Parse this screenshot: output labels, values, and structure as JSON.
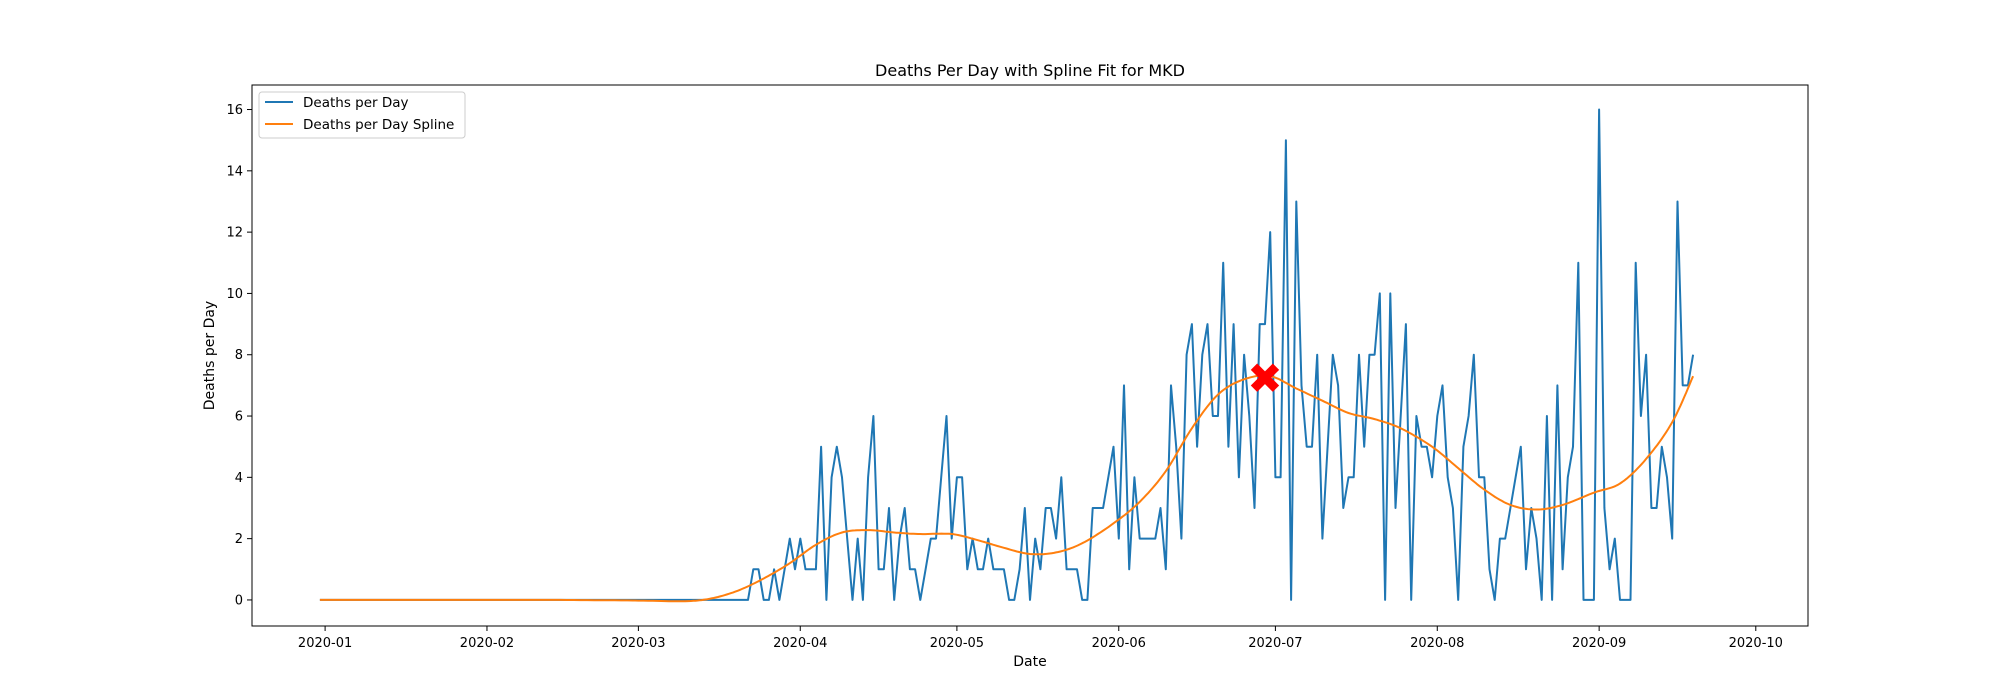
{
  "chart_data": {
    "type": "line",
    "title": "Deaths Per Day with Spline Fit for MKD",
    "xlabel": "Date",
    "ylabel": "Deaths per Day",
    "xlim": [
      "2019-12-18",
      "2020-10-11"
    ],
    "ylim": [
      -0.85,
      16.8
    ],
    "x_ticks": [
      "2020-01",
      "2020-02",
      "2020-03",
      "2020-04",
      "2020-05",
      "2020-06",
      "2020-07",
      "2020-08",
      "2020-09",
      "2020-10"
    ],
    "y_ticks": [
      0,
      2,
      4,
      6,
      8,
      10,
      12,
      14,
      16
    ],
    "grid": false,
    "legend_position": "upper-left",
    "colors": {
      "daily": "#1f77b4",
      "spline": "#ff7f0e",
      "marker": "#ff0000"
    },
    "series": [
      {
        "name": "Deaths per Day",
        "start_date": "2019-12-31",
        "end_date": "2020-09-19",
        "points": [
          [
            "2020-03-22",
            0
          ],
          [
            "2020-03-23",
            1
          ],
          [
            "2020-03-24",
            1
          ],
          [
            "2020-03-25",
            0
          ],
          [
            "2020-03-26",
            0
          ],
          [
            "2020-03-27",
            1
          ],
          [
            "2020-03-28",
            0
          ],
          [
            "2020-03-29",
            1
          ],
          [
            "2020-03-30",
            2
          ],
          [
            "2020-03-31",
            1
          ],
          [
            "2020-04-01",
            2
          ],
          [
            "2020-04-02",
            1
          ],
          [
            "2020-04-03",
            1
          ],
          [
            "2020-04-04",
            1
          ],
          [
            "2020-04-05",
            5
          ],
          [
            "2020-04-06",
            0
          ],
          [
            "2020-04-07",
            4
          ],
          [
            "2020-04-08",
            5
          ],
          [
            "2020-04-09",
            4
          ],
          [
            "2020-04-10",
            2
          ],
          [
            "2020-04-11",
            0
          ],
          [
            "2020-04-12",
            2
          ],
          [
            "2020-04-13",
            0
          ],
          [
            "2020-04-14",
            4
          ],
          [
            "2020-04-15",
            6
          ],
          [
            "2020-04-16",
            1
          ],
          [
            "2020-04-17",
            1
          ],
          [
            "2020-04-18",
            3
          ],
          [
            "2020-04-19",
            0
          ],
          [
            "2020-04-20",
            2
          ],
          [
            "2020-04-21",
            3
          ],
          [
            "2020-04-22",
            1
          ],
          [
            "2020-04-23",
            1
          ],
          [
            "2020-04-24",
            0
          ],
          [
            "2020-04-25",
            1
          ],
          [
            "2020-04-26",
            2
          ],
          [
            "2020-04-27",
            2
          ],
          [
            "2020-04-28",
            4
          ],
          [
            "2020-04-29",
            6
          ],
          [
            "2020-04-30",
            2
          ],
          [
            "2020-05-01",
            4
          ],
          [
            "2020-05-02",
            4
          ],
          [
            "2020-05-03",
            1
          ],
          [
            "2020-05-04",
            2
          ],
          [
            "2020-05-05",
            1
          ],
          [
            "2020-05-06",
            1
          ],
          [
            "2020-05-07",
            2
          ],
          [
            "2020-05-08",
            1
          ],
          [
            "2020-05-09",
            1
          ],
          [
            "2020-05-10",
            1
          ],
          [
            "2020-05-11",
            0
          ],
          [
            "2020-05-12",
            0
          ],
          [
            "2020-05-13",
            1
          ],
          [
            "2020-05-14",
            3
          ],
          [
            "2020-05-15",
            0
          ],
          [
            "2020-05-16",
            2
          ],
          [
            "2020-05-17",
            1
          ],
          [
            "2020-05-18",
            3
          ],
          [
            "2020-05-19",
            3
          ],
          [
            "2020-05-20",
            2
          ],
          [
            "2020-05-21",
            4
          ],
          [
            "2020-05-22",
            1
          ],
          [
            "2020-05-23",
            1
          ],
          [
            "2020-05-24",
            1
          ],
          [
            "2020-05-25",
            0
          ],
          [
            "2020-05-26",
            0
          ],
          [
            "2020-05-27",
            3
          ],
          [
            "2020-05-28",
            3
          ],
          [
            "2020-05-29",
            3
          ],
          [
            "2020-05-30",
            4
          ],
          [
            "2020-05-31",
            5
          ],
          [
            "2020-06-01",
            2
          ],
          [
            "2020-06-02",
            7
          ],
          [
            "2020-06-03",
            1
          ],
          [
            "2020-06-04",
            4
          ],
          [
            "2020-06-05",
            2
          ],
          [
            "2020-06-06",
            2
          ],
          [
            "2020-06-07",
            2
          ],
          [
            "2020-06-08",
            2
          ],
          [
            "2020-06-09",
            3
          ],
          [
            "2020-06-10",
            1
          ],
          [
            "2020-06-11",
            7
          ],
          [
            "2020-06-12",
            5
          ],
          [
            "2020-06-13",
            2
          ],
          [
            "2020-06-14",
            8
          ],
          [
            "2020-06-15",
            9
          ],
          [
            "2020-06-16",
            5
          ],
          [
            "2020-06-17",
            8
          ],
          [
            "2020-06-18",
            9
          ],
          [
            "2020-06-19",
            6
          ],
          [
            "2020-06-20",
            6
          ],
          [
            "2020-06-21",
            11
          ],
          [
            "2020-06-22",
            5
          ],
          [
            "2020-06-23",
            9
          ],
          [
            "2020-06-24",
            4
          ],
          [
            "2020-06-25",
            8
          ],
          [
            "2020-06-26",
            6
          ],
          [
            "2020-06-27",
            3
          ],
          [
            "2020-06-28",
            9
          ],
          [
            "2020-06-29",
            9
          ],
          [
            "2020-06-30",
            12
          ],
          [
            "2020-07-01",
            4
          ],
          [
            "2020-07-02",
            4
          ],
          [
            "2020-07-03",
            15
          ],
          [
            "2020-07-04",
            0
          ],
          [
            "2020-07-05",
            13
          ],
          [
            "2020-07-06",
            7
          ],
          [
            "2020-07-07",
            5
          ],
          [
            "2020-07-08",
            5
          ],
          [
            "2020-07-09",
            8
          ],
          [
            "2020-07-10",
            2
          ],
          [
            "2020-07-11",
            5
          ],
          [
            "2020-07-12",
            8
          ],
          [
            "2020-07-13",
            7
          ],
          [
            "2020-07-14",
            3
          ],
          [
            "2020-07-15",
            4
          ],
          [
            "2020-07-16",
            4
          ],
          [
            "2020-07-17",
            8
          ],
          [
            "2020-07-18",
            5
          ],
          [
            "2020-07-19",
            8
          ],
          [
            "2020-07-20",
            8
          ],
          [
            "2020-07-21",
            10
          ],
          [
            "2020-07-22",
            0
          ],
          [
            "2020-07-23",
            10
          ],
          [
            "2020-07-24",
            3
          ],
          [
            "2020-07-25",
            6
          ],
          [
            "2020-07-26",
            9
          ],
          [
            "2020-07-27",
            0
          ],
          [
            "2020-07-28",
            6
          ],
          [
            "2020-07-29",
            5
          ],
          [
            "2020-07-30",
            5
          ],
          [
            "2020-07-31",
            4
          ],
          [
            "2020-08-01",
            6
          ],
          [
            "2020-08-02",
            7
          ],
          [
            "2020-08-03",
            4
          ],
          [
            "2020-08-04",
            3
          ],
          [
            "2020-08-05",
            0
          ],
          [
            "2020-08-06",
            5
          ],
          [
            "2020-08-07",
            6
          ],
          [
            "2020-08-08",
            8
          ],
          [
            "2020-08-09",
            4
          ],
          [
            "2020-08-10",
            4
          ],
          [
            "2020-08-11",
            1
          ],
          [
            "2020-08-12",
            0
          ],
          [
            "2020-08-13",
            2
          ],
          [
            "2020-08-14",
            2
          ],
          [
            "2020-08-15",
            3
          ],
          [
            "2020-08-16",
            4
          ],
          [
            "2020-08-17",
            5
          ],
          [
            "2020-08-18",
            1
          ],
          [
            "2020-08-19",
            3
          ],
          [
            "2020-08-20",
            2
          ],
          [
            "2020-08-21",
            0
          ],
          [
            "2020-08-22",
            6
          ],
          [
            "2020-08-23",
            0
          ],
          [
            "2020-08-24",
            7
          ],
          [
            "2020-08-25",
            1
          ],
          [
            "2020-08-26",
            4
          ],
          [
            "2020-08-27",
            5
          ],
          [
            "2020-08-28",
            11
          ],
          [
            "2020-08-29",
            0
          ],
          [
            "2020-08-30",
            0
          ],
          [
            "2020-08-31",
            0
          ],
          [
            "2020-09-01",
            16
          ],
          [
            "2020-09-02",
            3
          ],
          [
            "2020-09-03",
            1
          ],
          [
            "2020-09-04",
            2
          ],
          [
            "2020-09-05",
            0
          ],
          [
            "2020-09-06",
            0
          ],
          [
            "2020-09-07",
            0
          ],
          [
            "2020-09-08",
            11
          ],
          [
            "2020-09-09",
            6
          ],
          [
            "2020-09-10",
            8
          ],
          [
            "2020-09-11",
            3
          ],
          [
            "2020-09-12",
            3
          ],
          [
            "2020-09-13",
            5
          ],
          [
            "2020-09-14",
            4
          ],
          [
            "2020-09-15",
            2
          ],
          [
            "2020-09-16",
            13
          ],
          [
            "2020-09-17",
            7
          ],
          [
            "2020-09-18",
            7
          ],
          [
            "2020-09-19",
            8
          ]
        ],
        "zero_before": "2020-03-22"
      },
      {
        "name": "Deaths per Day Spline",
        "points": [
          [
            "2019-12-31",
            0
          ],
          [
            "2020-01-31",
            0
          ],
          [
            "2020-02-15",
            0
          ],
          [
            "2020-03-01",
            -0.02
          ],
          [
            "2020-03-10",
            -0.04
          ],
          [
            "2020-03-15",
            0.05
          ],
          [
            "2020-03-20",
            0.3
          ],
          [
            "2020-03-25",
            0.7
          ],
          [
            "2020-03-30",
            1.2
          ],
          [
            "2020-04-04",
            1.8
          ],
          [
            "2020-04-09",
            2.2
          ],
          [
            "2020-04-14",
            2.28
          ],
          [
            "2020-04-19",
            2.2
          ],
          [
            "2020-04-24",
            2.15
          ],
          [
            "2020-04-30",
            2.15
          ],
          [
            "2020-05-05",
            1.95
          ],
          [
            "2020-05-10",
            1.7
          ],
          [
            "2020-05-15",
            1.5
          ],
          [
            "2020-05-20",
            1.55
          ],
          [
            "2020-05-25",
            1.85
          ],
          [
            "2020-05-31",
            2.5
          ],
          [
            "2020-06-05",
            3.2
          ],
          [
            "2020-06-10",
            4.2
          ],
          [
            "2020-06-15",
            5.6
          ],
          [
            "2020-06-20",
            6.7
          ],
          [
            "2020-06-25",
            7.2
          ],
          [
            "2020-06-30",
            7.3
          ],
          [
            "2020-07-05",
            6.9
          ],
          [
            "2020-07-10",
            6.5
          ],
          [
            "2020-07-15",
            6.1
          ],
          [
            "2020-07-20",
            5.9
          ],
          [
            "2020-07-25",
            5.6
          ],
          [
            "2020-07-31",
            5.0
          ],
          [
            "2020-08-05",
            4.3
          ],
          [
            "2020-08-10",
            3.6
          ],
          [
            "2020-08-15",
            3.1
          ],
          [
            "2020-08-20",
            2.95
          ],
          [
            "2020-08-25",
            3.1
          ],
          [
            "2020-08-31",
            3.5
          ],
          [
            "2020-09-05",
            3.8
          ],
          [
            "2020-09-10",
            4.6
          ],
          [
            "2020-09-15",
            5.8
          ],
          [
            "2020-09-19",
            7.3
          ]
        ]
      }
    ],
    "annotations": [
      {
        "type": "peak-marker",
        "symbol": "X",
        "date": "2020-06-29",
        "value": 7.25
      }
    ]
  }
}
